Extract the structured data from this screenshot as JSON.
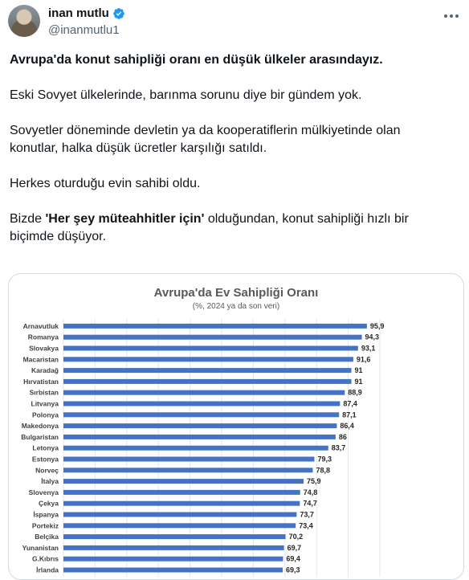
{
  "author": {
    "name": "inan mutlu",
    "handle": "@inanmutlu1",
    "avatar_icon": "profile-photo",
    "verified_icon": "verified-badge-icon",
    "verified_color": "#1d9bf0"
  },
  "tweet": {
    "line1": "Avrupa'da konut sahipliği oranı en düşük  ülkeler arasındayız.",
    "line2": "Eski Sovyet ülkelerinde, barınma sorunu diye bir gündem yok.",
    "line3a": "Sovyetler döneminde devletin ya da kooperatiflerin mülkiyetinde olan",
    "line3b": "konutlar, halka düşük ücretler karşılığı satıldı.",
    "line4": "Herkes oturduğu evin sahibi oldu.",
    "line5_pre": "Bizde ",
    "line5_bold": "'Her şey müteahhitler için'",
    "line5_post": " olduğundan, konut sahipliği hızlı bir",
    "line5b": "biçimde düşüyor."
  },
  "chart_data": {
    "type": "bar",
    "orientation": "horizontal",
    "title": "Avrupa'da Ev Sahipliği Oranı",
    "subtitle": "(%, 2024 ya da son veri)",
    "categories": [
      "Arnavutluk",
      "Romanya",
      "Slovakya",
      "Macaristan",
      "Karadağ",
      "Hırvatistan",
      "Sırbistan",
      "Litvanya",
      "Polonya",
      "Makedonya",
      "Bulgaristan",
      "Letonya",
      "Estonya",
      "Norveç",
      "İtalya",
      "Slovenya",
      "Çekya",
      "İspanya",
      "Portekiz",
      "Belçika",
      "Yunanistan",
      "G.Kıbrıs",
      "İrlanda"
    ],
    "values": [
      95.9,
      94.3,
      93.1,
      91.6,
      91,
      91,
      88.9,
      87.4,
      87.1,
      86.4,
      86,
      83.7,
      79.3,
      78.8,
      75.9,
      74.8,
      74.7,
      73.7,
      73.4,
      70.2,
      69.7,
      69.4,
      69.3
    ],
    "value_labels": [
      "95,9",
      "94,3",
      "93,1",
      "91,6",
      "91",
      "91",
      "88,9",
      "87,4",
      "87,1",
      "86,4",
      "86",
      "83,7",
      "79,3",
      "78,8",
      "75,9",
      "74,8",
      "74,7",
      "73,7",
      "73,4",
      "70,2",
      "69,7",
      "69,4",
      "69,3"
    ],
    "xlim": [
      0,
      100
    ],
    "grid": true,
    "bar_color": "#4472c4"
  }
}
